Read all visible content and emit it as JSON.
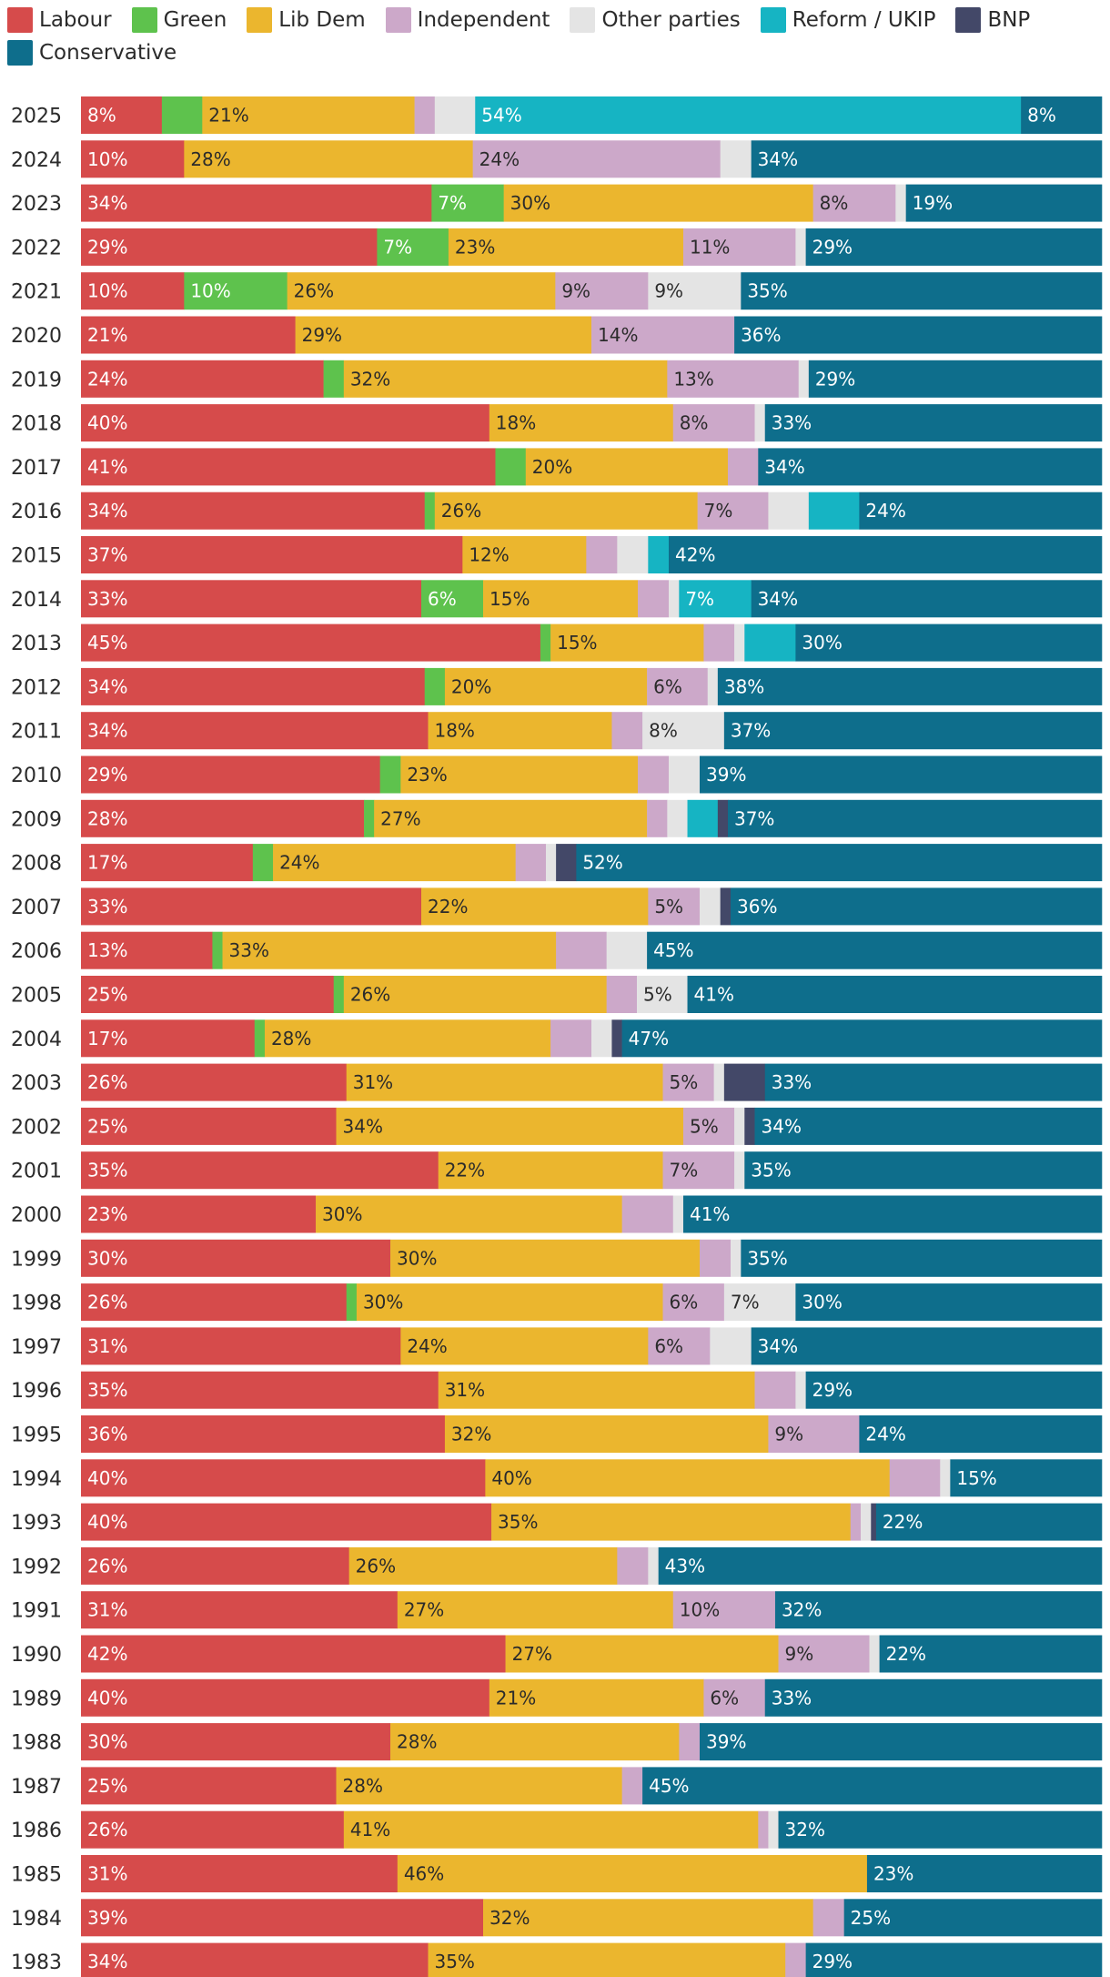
{
  "chart_data": {
    "type": "bar",
    "orientation": "horizontal",
    "stacked": true,
    "normalized_percent": true,
    "title": "",
    "xlabel": "",
    "ylabel": "",
    "xlim": [
      0,
      100
    ],
    "legend_position": "top",
    "series": [
      {
        "name": "Labour",
        "color": "#d64b4b",
        "text_color": "#ffffff",
        "values": [
          8,
          10,
          34,
          29,
          10,
          21,
          24,
          40,
          41,
          34,
          37,
          33,
          45,
          34,
          34,
          29,
          28,
          17,
          33,
          13,
          25,
          17,
          26,
          25,
          35,
          23,
          30,
          26,
          31,
          35,
          36,
          40,
          40,
          26,
          31,
          42,
          40,
          30,
          25,
          26,
          31,
          39,
          34
        ],
        "labels": [
          "8%",
          "10%",
          "34%",
          "29%",
          "10%",
          "21%",
          "24%",
          "40%",
          "41%",
          "34%",
          "37%",
          "33%",
          "45%",
          "34%",
          "34%",
          "29%",
          "28%",
          "17%",
          "33%",
          "13%",
          "25%",
          "17%",
          "26%",
          "25%",
          "35%",
          "23%",
          "30%",
          "26%",
          "31%",
          "35%",
          "36%",
          "40%",
          "40%",
          "26%",
          "31%",
          "42%",
          "40%",
          "30%",
          "25%",
          "26%",
          "31%",
          "39%",
          "34%"
        ]
      },
      {
        "name": "Green",
        "color": "#5ec24d",
        "text_color": "#ffffff",
        "values": [
          4,
          0,
          7,
          7,
          10,
          0,
          2,
          0,
          3,
          1,
          0,
          6,
          1,
          2,
          0,
          2,
          1,
          2,
          0,
          1,
          1,
          1,
          0,
          0,
          0,
          0,
          0,
          1,
          0,
          0,
          0,
          0,
          0,
          0,
          0,
          0,
          0,
          0,
          0,
          0,
          0,
          0,
          0
        ],
        "labels": [
          "",
          "",
          "7%",
          "7%",
          "10%",
          "",
          "",
          "",
          "",
          "",
          "",
          "6%",
          "",
          "",
          "",
          "",
          "",
          "",
          "",
          "",
          "",
          "",
          "",
          "",
          "",
          "",
          "",
          "",
          "",
          "",
          "",
          "",
          "",
          "",
          "",
          "",
          "",
          "",
          "",
          "",
          "",
          "",
          ""
        ]
      },
      {
        "name": "Lib Dem",
        "color": "#ebb62e",
        "text_color": "#2b2b2b",
        "values": [
          21,
          28,
          30,
          23,
          26,
          29,
          32,
          18,
          20,
          26,
          12,
          15,
          15,
          20,
          18,
          23,
          27,
          24,
          22,
          33,
          26,
          28,
          31,
          34,
          22,
          30,
          30,
          30,
          24,
          31,
          32,
          40,
          35,
          26,
          27,
          27,
          21,
          28,
          28,
          41,
          46,
          32,
          35
        ],
        "labels": [
          "21%",
          "28%",
          "30%",
          "23%",
          "26%",
          "29%",
          "32%",
          "18%",
          "20%",
          "26%",
          "12%",
          "15%",
          "15%",
          "20%",
          "18%",
          "23%",
          "27%",
          "24%",
          "22%",
          "33%",
          "26%",
          "28%",
          "31%",
          "34%",
          "22%",
          "30%",
          "30%",
          "30%",
          "24%",
          "31%",
          "32%",
          "40%",
          "35%",
          "26%",
          "27%",
          "27%",
          "21%",
          "28%",
          "28%",
          "41%",
          "46%",
          "32%",
          "35%"
        ]
      },
      {
        "name": "Independent",
        "color": "#cca8c9",
        "text_color": "#2b2b2b",
        "values": [
          2,
          24,
          8,
          11,
          9,
          14,
          13,
          8,
          3,
          7,
          3,
          3,
          3,
          6,
          3,
          3,
          2,
          3,
          5,
          5,
          3,
          4,
          5,
          5,
          7,
          5,
          3,
          6,
          6,
          4,
          9,
          5,
          1,
          3,
          10,
          9,
          6,
          2,
          2,
          1,
          0,
          3,
          2
        ],
        "labels": [
          "",
          "24%",
          "8%",
          "11%",
          "9%",
          "14%",
          "13%",
          "8%",
          "",
          "7%",
          "",
          "",
          "",
          "6%",
          "",
          "",
          "",
          "",
          "5%",
          "",
          "",
          "",
          "5%",
          "5%",
          "7%",
          "",
          "",
          "6%",
          "6%",
          "",
          "9%",
          "",
          "",
          "",
          "10%",
          "9%",
          "6%",
          "",
          "",
          "",
          "",
          "",
          ""
        ]
      },
      {
        "name": "Other parties",
        "color": "#e4e4e4",
        "text_color": "#2b2b2b",
        "values": [
          4,
          3,
          1,
          1,
          9,
          0,
          1,
          1,
          0,
          4,
          3,
          1,
          1,
          1,
          8,
          3,
          2,
          1,
          2,
          4,
          5,
          2,
          1,
          1,
          1,
          1,
          1,
          7,
          4,
          1,
          0,
          1,
          1,
          1,
          0,
          1,
          0,
          0,
          0,
          1,
          0,
          0,
          0
        ],
        "labels": [
          "",
          "",
          "",
          "",
          "9%",
          "",
          "",
          "",
          "",
          "",
          "",
          "",
          "",
          "",
          "8%",
          "",
          "",
          "",
          "",
          "",
          "5%",
          "",
          "",
          "",
          "",
          "",
          "",
          "7%",
          "",
          "",
          "",
          "",
          "",
          "",
          "",
          "",
          "",
          "",
          "",
          "",
          "",
          "",
          ""
        ]
      },
      {
        "name": "Reform / UKIP",
        "color": "#16b4c3",
        "text_color": "#ffffff",
        "values": [
          54,
          0,
          0,
          0,
          0,
          0,
          0,
          0,
          0,
          5,
          2,
          7,
          5,
          0,
          0,
          0,
          3,
          0,
          0,
          0,
          0,
          0,
          0,
          0,
          0,
          0,
          0,
          0,
          0,
          0,
          0,
          0,
          0,
          0,
          0,
          0,
          0,
          0,
          0,
          0,
          0,
          0,
          0
        ],
        "labels": [
          "54%",
          "",
          "",
          "",
          "",
          "",
          "",
          "",
          "",
          "",
          "",
          "7%",
          "",
          "",
          "",
          "",
          "",
          "",
          "",
          "",
          "",
          "",
          "",
          "",
          "",
          "",
          "",
          "",
          "",
          "",
          "",
          "",
          "",
          "",
          "",
          "",
          "",
          "",
          "",
          "",
          "",
          "",
          ""
        ]
      },
      {
        "name": "BNP",
        "color": "#434868",
        "text_color": "#ffffff",
        "values": [
          0,
          0,
          0,
          0,
          0,
          0,
          0,
          0,
          0,
          0,
          0,
          0,
          0,
          0,
          0,
          0,
          1,
          2,
          1,
          0,
          0,
          1,
          4,
          1,
          0,
          0,
          0,
          0,
          0,
          0,
          0,
          0,
          0.5,
          0,
          0,
          0,
          0,
          0,
          0,
          0,
          0,
          0,
          0
        ],
        "labels": [
          "",
          "",
          "",
          "",
          "",
          "",
          "",
          "",
          "",
          "",
          "",
          "",
          "",
          "",
          "",
          "",
          "",
          "",
          "",
          "",
          "",
          "",
          "",
          "",
          "",
          "",
          "",
          "",
          "",
          "",
          "",
          "",
          "",
          "",
          "",
          "",
          "",
          "",
          "",
          "",
          "",
          "",
          ""
        ]
      },
      {
        "name": "Conservative",
        "color": "#0e6e8c",
        "text_color": "#ffffff",
        "values": [
          8,
          34,
          19,
          29,
          35,
          36,
          29,
          33,
          34,
          24,
          42,
          34,
          30,
          38,
          37,
          39,
          37,
          52,
          36,
          45,
          41,
          47,
          33,
          34,
          35,
          41,
          35,
          30,
          34,
          29,
          24,
          15,
          22,
          43,
          32,
          22,
          33,
          39,
          45,
          32,
          23,
          25,
          29
        ],
        "labels": [
          "8%",
          "34%",
          "19%",
          "29%",
          "35%",
          "36%",
          "29%",
          "33%",
          "34%",
          "24%",
          "42%",
          "34%",
          "30%",
          "38%",
          "37%",
          "39%",
          "37%",
          "52%",
          "36%",
          "45%",
          "41%",
          "47%",
          "33%",
          "34%",
          "35%",
          "41%",
          "35%",
          "30%",
          "34%",
          "29%",
          "24%",
          "15%",
          "22%",
          "43%",
          "32%",
          "22%",
          "33%",
          "39%",
          "45%",
          "32%",
          "23%",
          "25%",
          "29%"
        ]
      }
    ],
    "categories": [
      "2025",
      "2024",
      "2023",
      "2022",
      "2021",
      "2020",
      "2019",
      "2018",
      "2017",
      "2016",
      "2015",
      "2014",
      "2013",
      "2012",
      "2011",
      "2010",
      "2009",
      "2008",
      "2007",
      "2006",
      "2005",
      "2004",
      "2003",
      "2002",
      "2001",
      "2000",
      "1999",
      "1998",
      "1997",
      "1996",
      "1995",
      "1994",
      "1993",
      "1992",
      "1991",
      "1990",
      "1989",
      "1988",
      "1987",
      "1986",
      "1985",
      "1984",
      "1983"
    ]
  }
}
